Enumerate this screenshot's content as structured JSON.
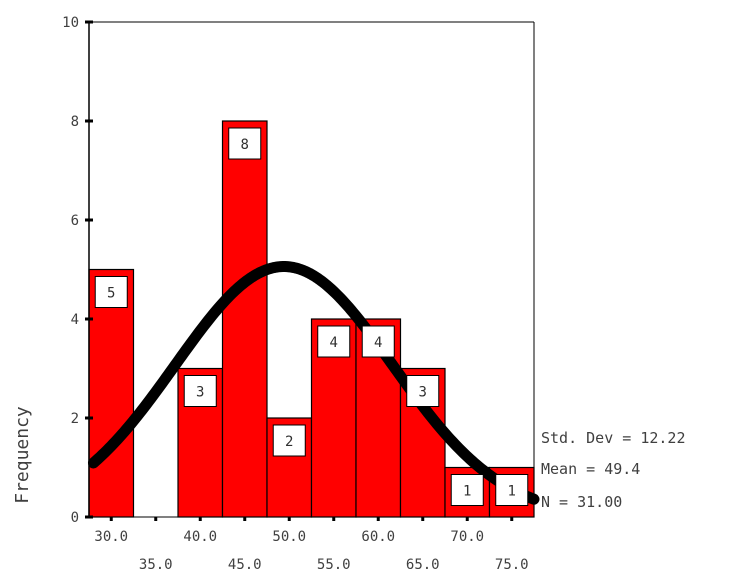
{
  "chart_data": {
    "type": "bar",
    "ylabel": "Frequency",
    "xlabel": "",
    "bin_width": 5,
    "categories": [
      "30.0",
      "35.0",
      "40.0",
      "45.0",
      "50.0",
      "55.0",
      "60.0",
      "65.0",
      "70.0",
      "75.0"
    ],
    "values": [
      5,
      0,
      3,
      8,
      2,
      4,
      4,
      3,
      1,
      1
    ],
    "bar_labels": [
      "5",
      "",
      "3",
      "8",
      "2",
      "4",
      "4",
      "3",
      "1",
      "1"
    ],
    "xlim": [
      27.5,
      77.5
    ],
    "ylim": [
      0,
      10
    ],
    "yticks": [
      "0",
      "2",
      "4",
      "6",
      "8",
      "10"
    ],
    "xticks_top_row": [
      "30.0",
      "40.0",
      "50.0",
      "60.0",
      "70.0"
    ],
    "xticks_bottom_row": [
      "35.0",
      "45.0",
      "55.0",
      "65.0",
      "75.0"
    ],
    "normal_curve": {
      "mean": 49.4,
      "std_dev": 12.22,
      "n": 31
    },
    "stats": {
      "std_dev": "Std. Dev = 12.22",
      "mean": "Mean = 49.4",
      "n": "N = 31.00"
    },
    "colors": {
      "bar": "#ff0000",
      "curve": "#000000",
      "axis": "#000000"
    },
    "grid": false
  }
}
